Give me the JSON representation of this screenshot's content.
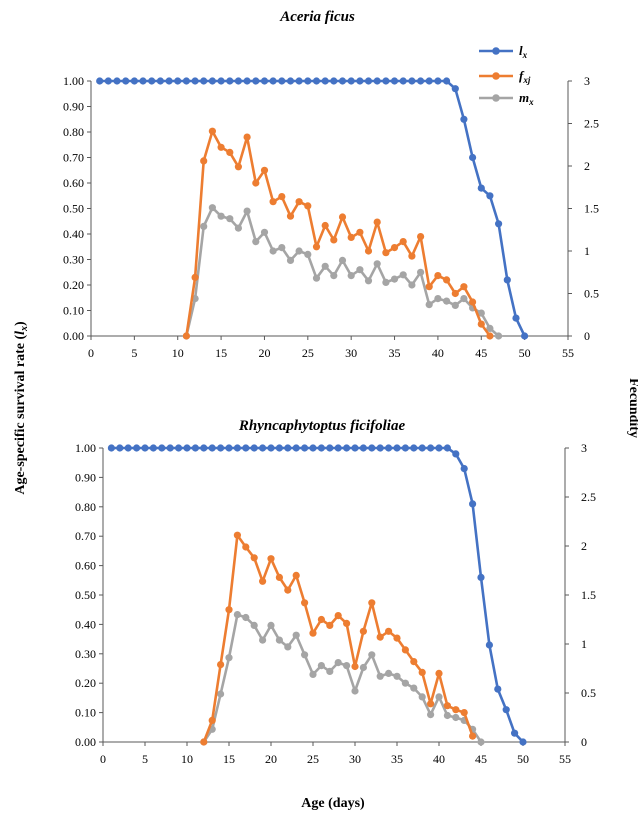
{
  "y_axis_label": "Age-specific survival rate (lx)",
  "y_axis_label_main": "Age-specific survival rate (",
  "y_axis_label_sym": "l",
  "y_axis_label_sub": "x",
  "y_axis_label_end": ")",
  "y2_axis_label": "Fecundity",
  "x_axis_label": "Age (days)",
  "legend": [
    {
      "sym": "l",
      "sub": "x",
      "color": "#4472C4"
    },
    {
      "sym": "f",
      "sub": "xj",
      "color": "#ED7D31"
    },
    {
      "sym": "m",
      "sub": "x",
      "color": "#A5A5A5"
    }
  ],
  "chart_data": [
    {
      "type": "line",
      "title": "Aceria ficus",
      "xlim": [
        0,
        55
      ],
      "xticks": [
        0,
        5,
        10,
        15,
        20,
        25,
        30,
        35,
        40,
        45,
        50,
        55
      ],
      "ylim": [
        0,
        1
      ],
      "yticks": [
        "0.00",
        "0.10",
        "0.20",
        "0.30",
        "0.40",
        "0.50",
        "0.60",
        "0.70",
        "0.80",
        "0.90",
        "1.00"
      ],
      "y2lim": [
        0,
        3
      ],
      "y2ticks": [
        "0",
        "0.5",
        "1",
        "1.5",
        "2",
        "2.5",
        "3"
      ],
      "series": [
        {
          "name": "lx",
          "axis": "left",
          "color": "#4472C4",
          "x": [
            1,
            2,
            3,
            4,
            5,
            6,
            7,
            8,
            9,
            10,
            11,
            12,
            13,
            14,
            15,
            16,
            17,
            18,
            19,
            20,
            21,
            22,
            23,
            24,
            25,
            26,
            27,
            28,
            29,
            30,
            31,
            32,
            33,
            34,
            35,
            36,
            37,
            38,
            39,
            40,
            41,
            42,
            43,
            44,
            45,
            46,
            47,
            48,
            49,
            50
          ],
          "values": [
            1,
            1,
            1,
            1,
            1,
            1,
            1,
            1,
            1,
            1,
            1,
            1,
            1,
            1,
            1,
            1,
            1,
            1,
            1,
            1,
            1,
            1,
            1,
            1,
            1,
            1,
            1,
            1,
            1,
            1,
            1,
            1,
            1,
            1,
            1,
            1,
            1,
            1,
            1,
            1,
            1,
            0.97,
            0.85,
            0.7,
            0.58,
            0.55,
            0.44,
            0.22,
            0.07,
            0.0
          ]
        },
        {
          "name": "fxj",
          "axis": "right",
          "color": "#ED7D31",
          "x": [
            11,
            12,
            13,
            14,
            15,
            16,
            17,
            18,
            19,
            20,
            21,
            22,
            23,
            24,
            25,
            26,
            27,
            28,
            29,
            30,
            31,
            32,
            33,
            34,
            35,
            36,
            37,
            38,
            39,
            40,
            41,
            42,
            43,
            44,
            45,
            46
          ],
          "values": [
            0,
            0.69,
            2.06,
            2.41,
            2.22,
            2.16,
            1.99,
            2.34,
            1.8,
            1.95,
            1.58,
            1.64,
            1.41,
            1.58,
            1.53,
            1.05,
            1.3,
            1.13,
            1.4,
            1.16,
            1.22,
            1.0,
            1.34,
            0.98,
            1.04,
            1.11,
            0.94,
            1.17,
            0.58,
            0.71,
            0.66,
            0.5,
            0.58,
            0.4,
            0.14,
            0.0
          ]
        },
        {
          "name": "mx",
          "axis": "right",
          "color": "#A5A5A5",
          "x": [
            11,
            12,
            13,
            14,
            15,
            16,
            17,
            18,
            19,
            20,
            21,
            22,
            23,
            24,
            25,
            26,
            27,
            28,
            29,
            30,
            31,
            32,
            33,
            34,
            35,
            36,
            37,
            38,
            39,
            40,
            41,
            42,
            43,
            44,
            45,
            46,
            47
          ],
          "values": [
            0,
            0.44,
            1.29,
            1.51,
            1.41,
            1.38,
            1.27,
            1.47,
            1.11,
            1.22,
            1.0,
            1.04,
            0.89,
            1.0,
            0.96,
            0.68,
            0.82,
            0.71,
            0.89,
            0.71,
            0.78,
            0.65,
            0.85,
            0.63,
            0.67,
            0.72,
            0.6,
            0.75,
            0.37,
            0.44,
            0.41,
            0.36,
            0.44,
            0.33,
            0.27,
            0.09,
            0.0
          ]
        }
      ]
    },
    {
      "type": "line",
      "title": "Rhyncaphytoptus ficifoliae",
      "xlim": [
        0,
        55
      ],
      "xticks": [
        0,
        5,
        10,
        15,
        20,
        25,
        30,
        35,
        40,
        45,
        50,
        55
      ],
      "ylim": [
        0,
        1
      ],
      "yticks": [
        "0.00",
        "0.10",
        "0.20",
        "0.30",
        "0.40",
        "0.50",
        "0.60",
        "0.70",
        "0.80",
        "0.90",
        "1.00"
      ],
      "y2lim": [
        0,
        3
      ],
      "y2ticks": [
        "0",
        "0.5",
        "1",
        "1.5",
        "2",
        "2.5",
        "3"
      ],
      "series": [
        {
          "name": "lx",
          "axis": "left",
          "color": "#4472C4",
          "x": [
            1,
            2,
            3,
            4,
            5,
            6,
            7,
            8,
            9,
            10,
            11,
            12,
            13,
            14,
            15,
            16,
            17,
            18,
            19,
            20,
            21,
            22,
            23,
            24,
            25,
            26,
            27,
            28,
            29,
            30,
            31,
            32,
            33,
            34,
            35,
            36,
            37,
            38,
            39,
            40,
            41,
            42,
            43,
            44,
            45,
            46,
            47,
            48,
            49,
            50
          ],
          "values": [
            1,
            1,
            1,
            1,
            1,
            1,
            1,
            1,
            1,
            1,
            1,
            1,
            1,
            1,
            1,
            1,
            1,
            1,
            1,
            1,
            1,
            1,
            1,
            1,
            1,
            1,
            1,
            1,
            1,
            1,
            1,
            1,
            1,
            1,
            1,
            1,
            1,
            1,
            1,
            1,
            1,
            0.98,
            0.93,
            0.81,
            0.56,
            0.33,
            0.18,
            0.11,
            0.03,
            0.0
          ]
        },
        {
          "name": "fxj",
          "axis": "right",
          "color": "#ED7D31",
          "x": [
            12,
            13,
            14,
            15,
            16,
            17,
            18,
            19,
            20,
            21,
            22,
            23,
            24,
            25,
            26,
            27,
            28,
            29,
            30,
            31,
            32,
            33,
            34,
            35,
            36,
            37,
            38,
            39,
            40,
            41,
            42,
            43,
            44
          ],
          "values": [
            0,
            0.22,
            0.79,
            1.35,
            2.11,
            1.99,
            1.88,
            1.64,
            1.87,
            1.68,
            1.55,
            1.7,
            1.42,
            1.11,
            1.25,
            1.19,
            1.29,
            1.21,
            0.77,
            1.13,
            1.42,
            1.07,
            1.13,
            1.06,
            0.94,
            0.82,
            0.71,
            0.39,
            0.7,
            0.37,
            0.33,
            0.3,
            0.06
          ]
        },
        {
          "name": "mx",
          "axis": "right",
          "color": "#A5A5A5",
          "x": [
            12,
            13,
            14,
            15,
            16,
            17,
            18,
            19,
            20,
            21,
            22,
            23,
            24,
            25,
            26,
            27,
            28,
            29,
            30,
            31,
            32,
            33,
            34,
            35,
            36,
            37,
            38,
            39,
            40,
            41,
            42,
            43,
            44,
            45
          ],
          "values": [
            0,
            0.13,
            0.49,
            0.86,
            1.3,
            1.27,
            1.19,
            1.04,
            1.19,
            1.04,
            0.97,
            1.09,
            0.89,
            0.69,
            0.78,
            0.72,
            0.81,
            0.78,
            0.52,
            0.76,
            0.89,
            0.67,
            0.7,
            0.67,
            0.6,
            0.55,
            0.46,
            0.28,
            0.46,
            0.27,
            0.25,
            0.22,
            0.13,
            0.0
          ]
        }
      ]
    }
  ]
}
